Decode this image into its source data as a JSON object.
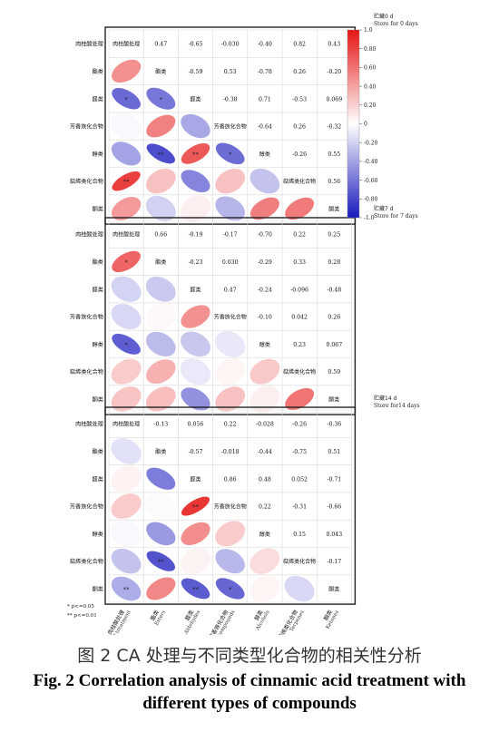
{
  "variables": [
    "肉桂酸处理",
    "酯类",
    "醛类",
    "芳香族化合物",
    "醇类",
    "萜烯类化合物",
    "酮类"
  ],
  "x_labels": [
    {
      "cn": "肉桂酸处理",
      "en": "Cinnamic acid treatment"
    },
    {
      "cn": "酯类",
      "en": "Esters"
    },
    {
      "cn": "醛类",
      "en": "Aldehydes"
    },
    {
      "cn": "芳香族化合物",
      "en": "Aromatic compounds"
    },
    {
      "cn": "醇类",
      "en": "Alcohols"
    },
    {
      "cn": "萜烯类化合物",
      "en": "Terpenes"
    },
    {
      "cn": "酮类",
      "en": "Ketones"
    }
  ],
  "legend": {
    "ticks": [
      "1.0",
      "0.80",
      "0.60",
      "0.40",
      "0.20",
      "0",
      "-0.20",
      "-0.40",
      "-0.60",
      "-0.80",
      "-1.0"
    ]
  },
  "significance": [
    "*  p<=0.05",
    "** p<=0.01"
  ],
  "chart_data": [
    {
      "type": "heatmap",
      "title": "贮藏0 d",
      "subtitle": "Store for 0 days",
      "upper": {
        "0-1": "0.47",
        "0-2": "-0.65",
        "0-3": "-0.030",
        "0-4": "-0.40",
        "0-5": "0.82",
        "0-6": "0.43",
        "1-2": "-0.59",
        "1-3": "0.53",
        "1-4": "-0.78",
        "1-5": "0.26",
        "1-6": "-0.20",
        "2-3": "-0.38",
        "2-4": "0.71",
        "2-5": "-0.53",
        "2-6": "0.069",
        "3-4": "-0.64",
        "3-5": "0.26",
        "3-6": "-0.32",
        "4-5": "-0.26",
        "4-6": "0.55",
        "5-6": "0.56"
      },
      "sig": {
        "2-0": "*",
        "2-1": "*",
        "4-2": "**",
        "4-3": "*",
        "4-1": "**",
        "5-0": "**"
      }
    },
    {
      "type": "heatmap",
      "title": "贮藏7 d",
      "subtitle": "Store for 7 days",
      "upper": {
        "0-1": "0.66",
        "0-2": "-0.19",
        "0-3": "-0.17",
        "0-4": "-0.70",
        "0-5": "0.22",
        "0-6": "0.25",
        "1-2": "-0.23",
        "1-3": "0.030",
        "1-4": "-0.29",
        "1-5": "0.33",
        "1-6": "0.28",
        "2-3": "0.47",
        "2-4": "-0.24",
        "2-5": "-0.096",
        "2-6": "-0.48",
        "3-4": "-0.10",
        "3-5": "0.042",
        "3-6": "0.26",
        "4-5": "0.23",
        "4-6": "0.067",
        "5-6": "0.59"
      },
      "sig": {
        "1-0": "*",
        "4-0": "*"
      }
    },
    {
      "type": "heatmap",
      "title": "贮藏14 d",
      "subtitle": "Store for14 days",
      "upper": {
        "0-1": "-0.13",
        "0-2": "0.056",
        "0-3": "0.22",
        "0-4": "-0.028",
        "0-5": "-0.26",
        "0-6": "-0.36",
        "1-2": "-0.57",
        "1-3": "-0.018",
        "1-4": "-0.44",
        "1-5": "-0.75",
        "1-6": "0.51",
        "2-3": "0.86",
        "2-4": "0.48",
        "2-5": "0.052",
        "2-6": "-0.71",
        "3-4": "0.22",
        "3-5": "-0.31",
        "3-6": "-0.66",
        "4-5": "0.15",
        "4-6": "0.043",
        "5-6": "-0.17"
      },
      "sig": {
        "3-2": "**",
        "6-0": "**",
        "6-2": "**",
        "6-3": "*",
        "5-1": "**"
      }
    }
  ],
  "caption_cn": "图 2 CA 处理与不同类型化合物的相关性分析",
  "caption_en": "Fig. 2 Correlation analysis of cinnamic acid treatment with different types of compounds"
}
